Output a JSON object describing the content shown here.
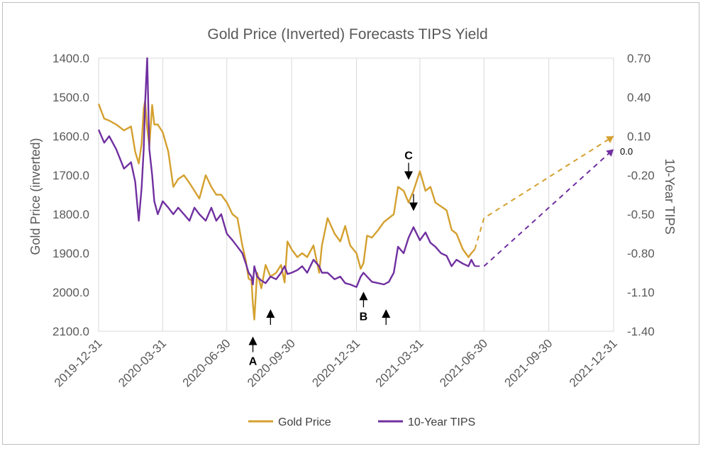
{
  "chart_data": {
    "type": "line",
    "title": "Gold Price (Inverted) Forecasts TIPS Yield",
    "ylabel": "Gold Price (inverted)",
    "y2label": "10-Year TIPS",
    "x_ticks": [
      "2019-12-31",
      "2020-03-31",
      "2020-06-30",
      "2020-09-30",
      "2020-12-31",
      "2021-03-31",
      "2021-06-30",
      "2021-09-30",
      "2021-12-31"
    ],
    "y_ticks": [
      "1400.0",
      "1500.0",
      "1600.0",
      "1700.0",
      "1800.0",
      "1900.0",
      "2000.0",
      "2100.0"
    ],
    "y2_ticks": [
      "0.70",
      "0.40",
      "0.10",
      "-0.20",
      "-0.50",
      "-0.80",
      "-1.10",
      "-1.40"
    ],
    "ylim": [
      1400,
      2100
    ],
    "y_inverted": true,
    "y2lim": [
      -1.4,
      0.7
    ],
    "grid": "vertical",
    "legend_position": "bottom",
    "series": [
      {
        "name": "Gold Price",
        "axis": "left",
        "color": "#d4a02f",
        "x": [
          "2019-12-31",
          "2020-01-08",
          "2020-01-15",
          "2020-01-25",
          "2020-02-05",
          "2020-02-15",
          "2020-02-21",
          "2020-02-26",
          "2020-03-01",
          "2020-03-04",
          "2020-03-06",
          "2020-03-09",
          "2020-03-12",
          "2020-03-16",
          "2020-03-19",
          "2020-03-24",
          "2020-03-31",
          "2020-04-08",
          "2020-04-15",
          "2020-04-22",
          "2020-04-30",
          "2020-05-08",
          "2020-05-15",
          "2020-05-22",
          "2020-05-31",
          "2020-06-08",
          "2020-06-15",
          "2020-06-22",
          "2020-06-30",
          "2020-07-08",
          "2020-07-15",
          "2020-07-22",
          "2020-07-27",
          "2020-07-31",
          "2020-08-04",
          "2020-08-06",
          "2020-08-08",
          "2020-08-12",
          "2020-08-18",
          "2020-08-24",
          "2020-08-31",
          "2020-09-08",
          "2020-09-15",
          "2020-09-20",
          "2020-09-24",
          "2020-09-30",
          "2020-10-08",
          "2020-10-15",
          "2020-10-22",
          "2020-10-31",
          "2020-11-08",
          "2020-11-12",
          "2020-11-20",
          "2020-11-30",
          "2020-12-08",
          "2020-12-15",
          "2020-12-22",
          "2020-12-31",
          "2021-01-06",
          "2021-01-10",
          "2021-01-15",
          "2021-01-22",
          "2021-01-31",
          "2021-02-08",
          "2021-02-15",
          "2021-02-22",
          "2021-02-28",
          "2021-03-08",
          "2021-03-15",
          "2021-03-22",
          "2021-03-31",
          "2021-04-08",
          "2021-04-15",
          "2021-04-22",
          "2021-04-30",
          "2021-05-08",
          "2021-05-15",
          "2021-05-22",
          "2021-05-31",
          "2021-06-08",
          "2021-06-12",
          "2021-06-17"
        ],
        "values": [
          1517,
          1555,
          1560,
          1570,
          1585,
          1575,
          1640,
          1670,
          1620,
          1530,
          1510,
          1580,
          1625,
          1520,
          1570,
          1570,
          1590,
          1640,
          1730,
          1710,
          1700,
          1720,
          1740,
          1760,
          1700,
          1730,
          1750,
          1750,
          1770,
          1800,
          1810,
          1880,
          1920,
          1965,
          1970,
          2030,
          2070,
          1950,
          1990,
          1930,
          1960,
          1950,
          1930,
          1975,
          1870,
          1890,
          1910,
          1900,
          1910,
          1880,
          1950,
          1880,
          1810,
          1850,
          1870,
          1830,
          1880,
          1900,
          1940,
          1925,
          1855,
          1860,
          1840,
          1820,
          1810,
          1800,
          1730,
          1740,
          1770,
          1740,
          1690,
          1740,
          1730,
          1770,
          1780,
          1790,
          1840,
          1850,
          1890,
          1910,
          1900,
          1890
        ],
        "forecast": {
          "x": [
            "2021-06-17",
            "2021-06-30",
            "2021-12-31"
          ],
          "values": [
            1890,
            1810,
            1600
          ]
        }
      },
      {
        "name": "10-Year TIPS",
        "axis": "right",
        "color": "#7030a0",
        "x": [
          "2019-12-31",
          "2020-01-08",
          "2020-01-15",
          "2020-01-25",
          "2020-02-05",
          "2020-02-15",
          "2020-02-21",
          "2020-02-26",
          "2020-03-01",
          "2020-03-04",
          "2020-03-06",
          "2020-03-09",
          "2020-03-12",
          "2020-03-16",
          "2020-03-19",
          "2020-03-24",
          "2020-03-31",
          "2020-04-08",
          "2020-04-15",
          "2020-04-22",
          "2020-04-30",
          "2020-05-08",
          "2020-05-15",
          "2020-05-22",
          "2020-05-31",
          "2020-06-08",
          "2020-06-15",
          "2020-06-22",
          "2020-06-30",
          "2020-07-08",
          "2020-07-15",
          "2020-07-22",
          "2020-07-27",
          "2020-07-31",
          "2020-08-04",
          "2020-08-06",
          "2020-08-08",
          "2020-08-12",
          "2020-08-18",
          "2020-08-24",
          "2020-08-31",
          "2020-09-08",
          "2020-09-15",
          "2020-09-20",
          "2020-09-24",
          "2020-09-30",
          "2020-10-08",
          "2020-10-15",
          "2020-10-22",
          "2020-10-31",
          "2020-11-08",
          "2020-11-12",
          "2020-11-20",
          "2020-11-30",
          "2020-12-08",
          "2020-12-15",
          "2020-12-22",
          "2020-12-31",
          "2021-01-06",
          "2021-01-10",
          "2021-01-15",
          "2021-01-22",
          "2021-01-31",
          "2021-02-08",
          "2021-02-15",
          "2021-02-22",
          "2021-02-28",
          "2021-03-08",
          "2021-03-15",
          "2021-03-22",
          "2021-03-31",
          "2021-04-08",
          "2021-04-15",
          "2021-04-22",
          "2021-04-30",
          "2021-05-08",
          "2021-05-15",
          "2021-05-22",
          "2021-05-31",
          "2021-06-08",
          "2021-06-12",
          "2021-06-17"
        ],
        "values": [
          0.15,
          0.05,
          0.1,
          0.0,
          -0.15,
          -0.1,
          -0.25,
          -0.55,
          -0.3,
          0.0,
          0.35,
          0.7,
          0.0,
          -0.2,
          -0.4,
          -0.5,
          -0.4,
          -0.45,
          -0.5,
          -0.45,
          -0.5,
          -0.55,
          -0.45,
          -0.5,
          -0.55,
          -0.45,
          -0.55,
          -0.5,
          -0.65,
          -0.7,
          -0.75,
          -0.8,
          -0.88,
          -0.95,
          -0.98,
          -1.04,
          -0.9,
          -0.98,
          -1.01,
          -1.03,
          -0.98,
          -1.0,
          -0.95,
          -0.9,
          -0.96,
          -0.95,
          -0.93,
          -0.9,
          -0.95,
          -0.85,
          -0.9,
          -0.95,
          -0.95,
          -1.0,
          -0.98,
          -1.03,
          -1.04,
          -1.06,
          -0.98,
          -0.95,
          -0.98,
          -1.02,
          -1.03,
          -1.04,
          -1.02,
          -0.95,
          -0.75,
          -0.8,
          -0.68,
          -0.6,
          -0.7,
          -0.64,
          -0.72,
          -0.75,
          -0.8,
          -0.82,
          -0.9,
          -0.85,
          -0.88,
          -0.9,
          -0.85,
          -0.9
        ],
        "forecast": {
          "x": [
            "2021-06-17",
            "2021-06-30",
            "2021-12-31"
          ],
          "values": [
            -0.9,
            -0.9,
            0.0
          ]
        }
      }
    ],
    "annotations": [
      {
        "label": "A",
        "x": "2020-08-06",
        "axis": "left",
        "y": 2070,
        "arrow": "up"
      },
      {
        "label": "",
        "x": "2020-08-31",
        "axis": "left",
        "y": 2000,
        "arrow": "up"
      },
      {
        "label": "B",
        "x": "2021-01-10",
        "axis": "left",
        "y": 1955,
        "arrow": "up"
      },
      {
        "label": "",
        "x": "2021-02-11",
        "axis": "left",
        "y": 2000,
        "arrow": "up"
      },
      {
        "label": "C",
        "x": "2021-03-15",
        "axis": "left",
        "y": 1730,
        "arrow": "down"
      },
      {
        "label": "",
        "x": "2021-03-22",
        "axis": "left",
        "y": 1810,
        "arrow": "down"
      }
    ],
    "forecast_label": "0.0"
  }
}
